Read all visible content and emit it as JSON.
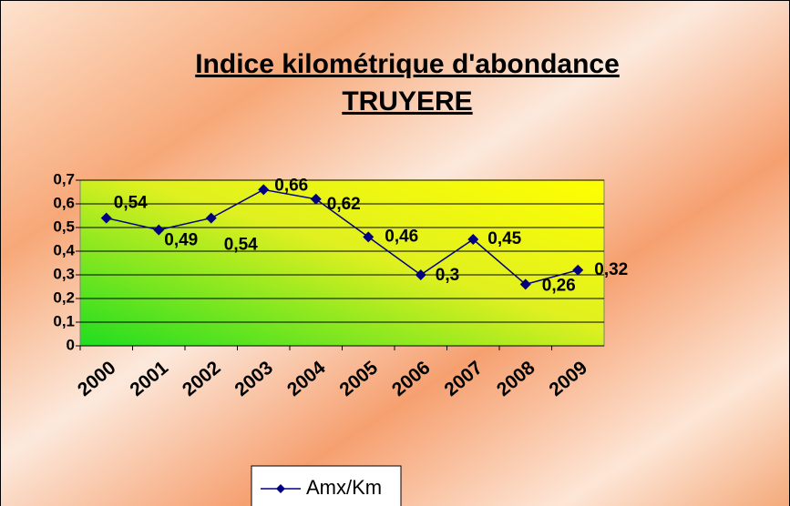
{
  "chart_data": {
    "type": "line",
    "title": [
      "Indice kilométrique d'abondance",
      "TRUYERE"
    ],
    "categories": [
      "2000",
      "2001",
      "2002",
      "2003",
      "2004",
      "2005",
      "2006",
      "2007",
      "2008",
      "2009"
    ],
    "series": [
      {
        "name": "Amx/Km",
        "color": "#000080",
        "values": [
          0.54,
          0.49,
          0.54,
          0.66,
          0.62,
          0.46,
          0.3,
          0.45,
          0.26,
          0.32
        ],
        "value_labels": [
          "0,54",
          "0,49",
          "0,54",
          "0,66",
          "0,62",
          "0,46",
          "0,3",
          "0,45",
          "0,26",
          "0,32"
        ]
      }
    ],
    "ylim": [
      0,
      0.7
    ],
    "yticks": [
      0,
      {
        "value": 0.1,
        "label": "0,1"
      },
      {
        "value": 0.2,
        "label": "0,2"
      },
      {
        "value": 0.3,
        "label": "0,3"
      },
      {
        "value": 0.4,
        "label": "0,4"
      },
      {
        "value": 0.5,
        "label": "0,5"
      },
      {
        "value": 0.6,
        "label": "0,6"
      },
      {
        "value": 0.7,
        "label": "0,7"
      }
    ],
    "grid": true,
    "legend": "bottom"
  }
}
